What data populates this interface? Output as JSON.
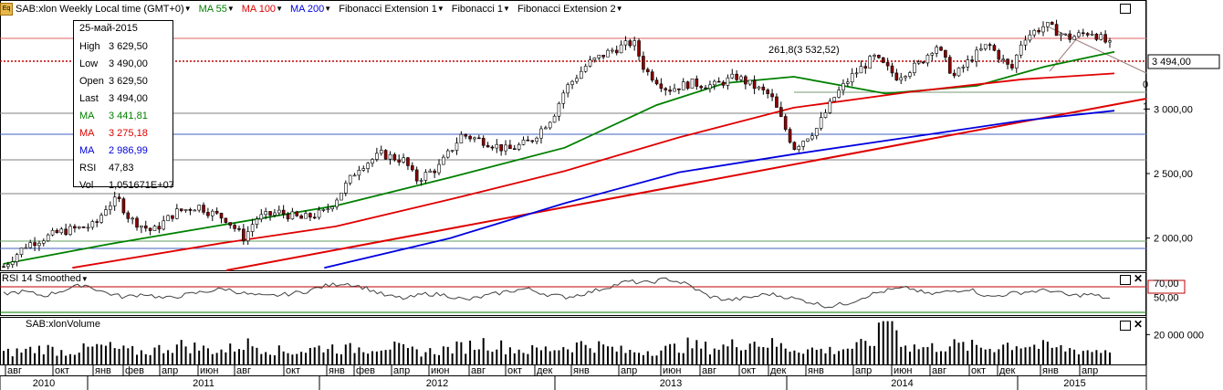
{
  "header": {
    "symbol": "SAB:xlon Weekly Local time (GMT+0)",
    "indicators": [
      {
        "label": "MA 55",
        "color": "#008000"
      },
      {
        "label": "MA 100",
        "color": "#e00000"
      },
      {
        "label": "MA 200",
        "color": "#0000e0"
      },
      {
        "label": "Fibonacci Extension 1",
        "color": "#000000"
      },
      {
        "label": "Fibonacci 1",
        "color": "#000000"
      },
      {
        "label": "Fibonacci Extension 2",
        "color": "#000000"
      }
    ]
  },
  "info_box": {
    "date": "25-май-2015",
    "rows": [
      {
        "k": "High",
        "v": "3 629,50",
        "color": "#000000"
      },
      {
        "k": "Low",
        "v": "3 490,00",
        "color": "#000000"
      },
      {
        "k": "Open",
        "v": "3 629,50",
        "color": "#000000"
      },
      {
        "k": "Last",
        "v": "3 494,00",
        "color": "#000000"
      },
      {
        "k": "MA",
        "v": "3 441,81",
        "color": "#008000"
      },
      {
        "k": "MA",
        "v": "3 275,18",
        "color": "#e00000"
      },
      {
        "k": "MA",
        "v": "2 986,99",
        "color": "#0000e0"
      },
      {
        "k": "RSI",
        "v": "47,83",
        "color": "#000000"
      },
      {
        "k": "Vol",
        "v": "1,051671E+07",
        "color": "#000000"
      }
    ]
  },
  "fib_label": "261,8(3 532,52)",
  "rsi_title": "RSI 14 Smoothed",
  "volume_title": "SAB:xlonVolume",
  "chart_data": [
    {
      "type": "candlestick",
      "title": "SAB:xlon Weekly",
      "y_ticks": [
        "2 000,00",
        "2 500,00",
        "3 000,00",
        "3 494,00"
      ],
      "last_price": "3 494,00",
      "ylim": [
        1750,
        3830
      ],
      "close_path": [
        [
          2010.55,
          1780
        ],
        [
          2010.65,
          1950
        ],
        [
          2010.8,
          2050
        ],
        [
          2010.95,
          2100
        ],
        [
          2011.0,
          2250
        ],
        [
          2011.05,
          2300
        ],
        [
          2011.1,
          2150
        ],
        [
          2011.2,
          2050
        ],
        [
          2011.3,
          2200
        ],
        [
          2011.4,
          2250
        ],
        [
          2011.45,
          2200
        ],
        [
          2011.52,
          2150
        ],
        [
          2011.6,
          2000
        ],
        [
          2011.65,
          2150
        ],
        [
          2011.75,
          2200
        ],
        [
          2011.85,
          2150
        ],
        [
          2011.95,
          2200
        ],
        [
          2012.0,
          2300
        ],
        [
          2012.1,
          2550
        ],
        [
          2012.2,
          2650
        ],
        [
          2012.3,
          2600
        ],
        [
          2012.35,
          2450
        ],
        [
          2012.45,
          2550
        ],
        [
          2012.55,
          2800
        ],
        [
          2012.65,
          2750
        ],
        [
          2012.75,
          2680
        ],
        [
          2012.85,
          2750
        ],
        [
          2012.95,
          2950
        ],
        [
          2013.0,
          3150
        ],
        [
          2013.1,
          3350
        ],
        [
          2013.2,
          3450
        ],
        [
          2013.3,
          3520
        ],
        [
          2013.35,
          3300
        ],
        [
          2013.45,
          3150
        ],
        [
          2013.55,
          3200
        ],
        [
          2013.65,
          3180
        ],
        [
          2013.75,
          3250
        ],
        [
          2013.82,
          3180
        ],
        [
          2013.9,
          3100
        ],
        [
          2014.0,
          2700
        ],
        [
          2014.1,
          2850
        ],
        [
          2014.18,
          3100
        ],
        [
          2014.25,
          3250
        ],
        [
          2014.35,
          3400
        ],
        [
          2014.45,
          3250
        ],
        [
          2014.55,
          3350
        ],
        [
          2014.62,
          3500
        ],
        [
          2014.7,
          3250
        ],
        [
          2014.78,
          3400
        ],
        [
          2014.85,
          3500
        ],
        [
          2014.95,
          3300
        ],
        [
          2015.0,
          3550
        ],
        [
          2015.1,
          3650
        ],
        [
          2015.2,
          3550
        ],
        [
          2015.3,
          3600
        ],
        [
          2015.38,
          3494
        ]
      ],
      "ma": [
        {
          "name": "MA 55",
          "color": "#008000",
          "points": [
            [
              2010.55,
              1800
            ],
            [
              2011.0,
              1950
            ],
            [
              2011.5,
              2100
            ],
            [
              2012.0,
              2250
            ],
            [
              2012.5,
              2470
            ],
            [
              2013.0,
              2700
            ],
            [
              2013.4,
              3030
            ],
            [
              2013.7,
              3200
            ],
            [
              2014.0,
              3250
            ],
            [
              2014.4,
              3120
            ],
            [
              2014.8,
              3180
            ],
            [
              2015.1,
              3330
            ],
            [
              2015.4,
              3442
            ]
          ]
        },
        {
          "name": "MA 100",
          "color": "#e00000",
          "points": [
            [
              2010.85,
              1770
            ],
            [
              2011.5,
              1960
            ],
            [
              2012.0,
              2090
            ],
            [
              2012.5,
              2300
            ],
            [
              2013.0,
              2520
            ],
            [
              2013.5,
              2780
            ],
            [
              2014.0,
              3010
            ],
            [
              2014.5,
              3130
            ],
            [
              2015.0,
              3230
            ],
            [
              2015.4,
              3275
            ]
          ]
        },
        {
          "name": "MA 200",
          "color": "#0000e0",
          "points": [
            [
              2011.95,
              1770
            ],
            [
              2012.5,
              2000
            ],
            [
              2013.0,
              2270
            ],
            [
              2013.5,
              2510
            ],
            [
              2014.0,
              2650
            ],
            [
              2014.5,
              2780
            ],
            [
              2015.0,
              2910
            ],
            [
              2015.4,
              2987
            ]
          ]
        }
      ]
    },
    {
      "type": "line",
      "title": "RSI 14 Smoothed",
      "y_ticks": [
        "70,00",
        "50,00"
      ],
      "ylim": [
        25,
        80
      ],
      "series": [
        {
          "values": [
            55,
            58,
            52,
            60,
            68,
            57,
            50,
            55,
            48,
            53,
            58,
            62,
            55,
            51,
            54,
            58,
            66,
            70,
            63,
            52,
            48,
            55,
            53,
            46,
            52,
            58,
            62,
            54,
            50,
            56,
            64,
            72,
            70,
            76,
            68,
            52,
            46,
            49,
            55,
            50,
            44,
            37,
            42,
            53,
            60,
            63,
            54,
            58,
            62,
            50,
            55,
            58,
            60,
            52,
            54,
            48
          ]
        }
      ]
    },
    {
      "type": "bar",
      "title": "SAB:xlonVolume",
      "y_ticks": [
        "20 000 000"
      ],
      "ylim": [
        0,
        30000000
      ],
      "series": [
        {
          "values": [
            8,
            10,
            12,
            9,
            11,
            13,
            10,
            9,
            12,
            14,
            11,
            10,
            15,
            12,
            9,
            10,
            13,
            11,
            12,
            14,
            10,
            9,
            11,
            13,
            16,
            12,
            10,
            11,
            13,
            15,
            12,
            9,
            10,
            11,
            14,
            12,
            13,
            17,
            15,
            12,
            11,
            10,
            12,
            14,
            29,
            13,
            12,
            14,
            13,
            12,
            15,
            14,
            12,
            11,
            10,
            10.5
          ]
        }
      ]
    }
  ],
  "x_axis": {
    "months": [
      "авг",
      "окт",
      "янв",
      "фев",
      "апр",
      "июн",
      "авг",
      "окт",
      "янв",
      "фев",
      "апр",
      "июн",
      "авг",
      "окт",
      "дек",
      "янв",
      "апр",
      "июн",
      "авг",
      "окт",
      "дек",
      "янв",
      "апр",
      "июн",
      "авг",
      "окт",
      "дек",
      "янв",
      "апр"
    ],
    "years": [
      "2010",
      "2011",
      "2012",
      "2013",
      "2014",
      "2015"
    ]
  }
}
